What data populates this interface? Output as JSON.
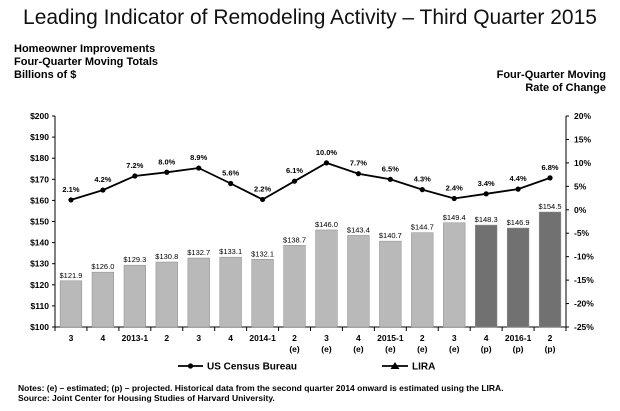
{
  "header": {
    "title": "Leading Indicator of Remodeling Activity – Third Quarter 2015",
    "left_lines": [
      "Homeowner Improvements",
      "Four-Quarter Moving Totals",
      "Billions of $"
    ],
    "right_lines": [
      "Four-Quarter Moving",
      "Rate of Change"
    ]
  },
  "chart_data": {
    "type": "bar",
    "title": "Leading Indicator of Remodeling Activity – Third Quarter 2015",
    "categories": [
      [
        "3",
        ""
      ],
      [
        "4",
        ""
      ],
      [
        "2013-1",
        ""
      ],
      [
        "2",
        ""
      ],
      [
        "3",
        ""
      ],
      [
        "4",
        ""
      ],
      [
        "2014-1",
        ""
      ],
      [
        "2",
        "(e)"
      ],
      [
        "3",
        "(e)"
      ],
      [
        "4",
        "(e)"
      ],
      [
        "2015-1",
        "(e)"
      ],
      [
        "2",
        "(e)"
      ],
      [
        "3",
        "(e)"
      ],
      [
        "4",
        "(p)"
      ],
      [
        "2016-1",
        "(p)"
      ],
      [
        "2",
        "(p)"
      ]
    ],
    "y_left": {
      "label": "Billions of $",
      "min": 100,
      "max": 200,
      "step": 10,
      "prefix": "$"
    },
    "y_right": {
      "label": "Four-Quarter Moving Rate of Change",
      "min": -25,
      "max": 20,
      "step": 5,
      "suffix": "%"
    },
    "series": [
      {
        "name": "US Census Bureau",
        "kind": "bar",
        "axis": "left",
        "values": [
          121.9,
          126.0,
          129.3,
          130.8,
          132.7,
          133.1,
          132.1,
          138.7,
          146.0,
          143.4,
          140.7,
          144.7,
          149.4,
          148.3,
          146.9,
          154.5
        ],
        "labels": [
          "$121.9",
          "$126.0",
          "$129.3",
          "$130.8",
          "$132.7",
          "$133.1",
          "$132.1",
          "$138.7",
          "$146.0",
          "$143.4",
          "$140.7",
          "$144.7",
          "$149.4",
          "$148.3",
          "$146.9",
          "$154.5"
        ]
      },
      {
        "name": "LIRA",
        "kind": "line",
        "axis": "right",
        "values": [
          2.1,
          4.2,
          7.2,
          8.0,
          8.9,
          5.6,
          2.2,
          6.1,
          10.0,
          7.7,
          6.5,
          4.3,
          2.4,
          3.4,
          4.4,
          6.8
        ],
        "labels": [
          "2.1%",
          "4.2%",
          "7.2%",
          "8.0%",
          "8.9%",
          "5.6%",
          "2.2%",
          "6.1%",
          "10.0%",
          "7.7%",
          "6.5%",
          "4.3%",
          "2.4%",
          "3.4%",
          "4.4%",
          "6.8%"
        ]
      }
    ],
    "legend": [
      {
        "name": "US Census Bureau",
        "marker": "circle"
      },
      {
        "name": "LIRA",
        "marker": "triangle"
      }
    ],
    "colors": {
      "bar_light": "#b9b9b9",
      "bar_dark": "#717171",
      "line": "#000000"
    },
    "dark_bar_from_index": 13,
    "grid": false,
    "legend_position": "bottom"
  },
  "notes": [
    "Notes: (e) – estimated; (p) – projected.  Historical data from the second quarter 2014 onward is estimated using the LIRA.",
    "Source: Joint Center for Housing  Studies of Harvard University."
  ]
}
